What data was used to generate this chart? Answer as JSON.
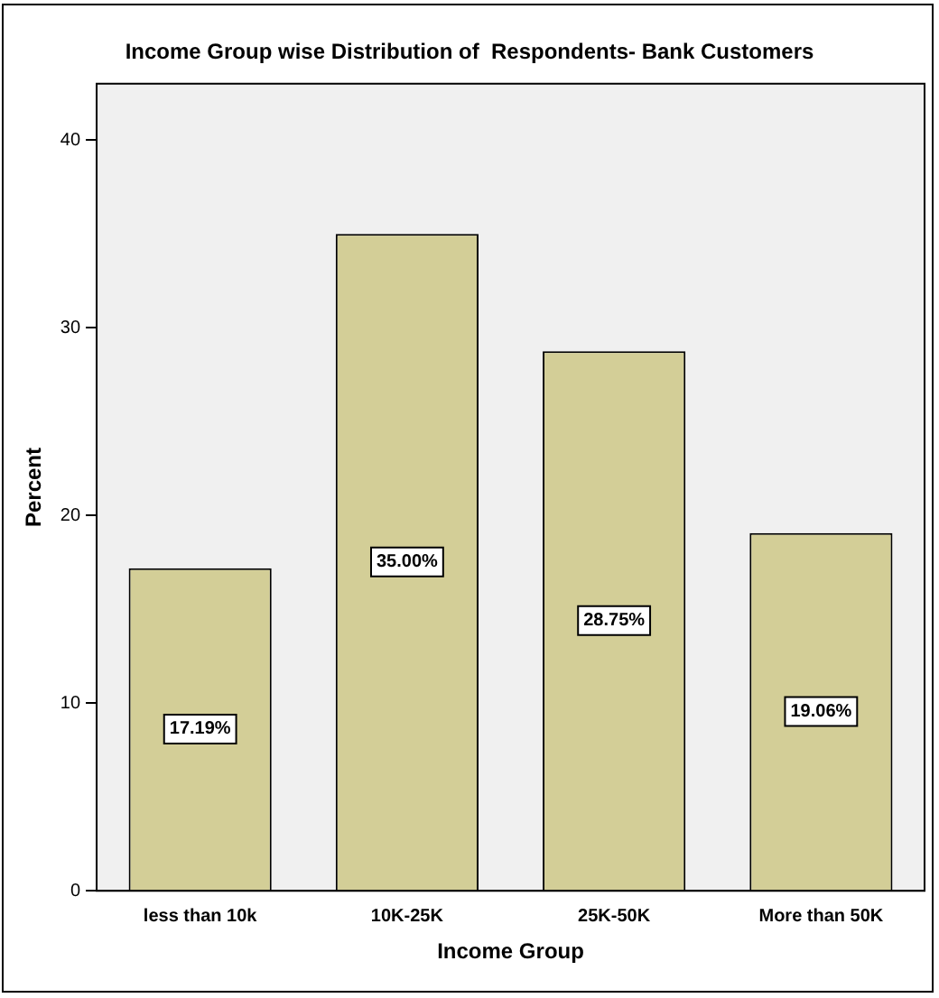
{
  "chart_data": {
    "type": "bar",
    "title": "Income Group wise Distribution of  Respondents- Bank Customers",
    "xlabel": "Income Group",
    "ylabel": "Percent",
    "categories": [
      "less than 10k",
      "10K-25K",
      "25K-50K",
      "More than 50K"
    ],
    "values": [
      17.19,
      35.0,
      28.75,
      19.06
    ],
    "value_labels": [
      "17.19%",
      "35.00%",
      "28.75%",
      "19.06%"
    ],
    "color": "#d3ce97",
    "ylim": [
      0,
      43
    ],
    "yticks": [
      0,
      10,
      20,
      30,
      40
    ],
    "grid": false,
    "legend": false
  }
}
